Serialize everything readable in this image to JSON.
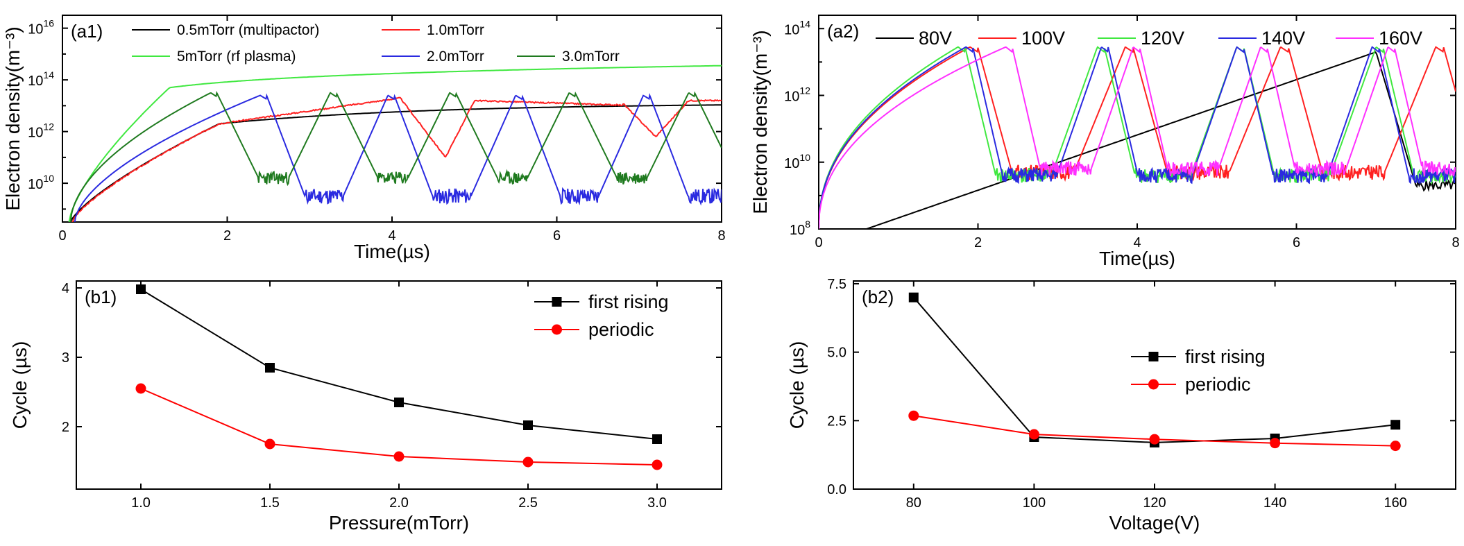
{
  "chart_data": [
    {
      "panel": "a1",
      "type": "line",
      "label": "(a1)",
      "xlabel": "Time(µs)",
      "ylabel": "Electron density(m⁻³)",
      "xlim": [
        0,
        8
      ],
      "ylim_log10": [
        8.5,
        16.5
      ],
      "yscale": "log",
      "xticks": [
        0,
        2,
        4,
        6,
        8
      ],
      "xtick_labels": [
        "0",
        "2",
        "4",
        "6",
        "8"
      ],
      "yticks_exp": [
        10,
        12,
        14,
        16
      ],
      "ytick_labels": [
        "10",
        "10",
        "10",
        "10"
      ],
      "ytick_exps": [
        "10",
        "12",
        "14",
        "16"
      ],
      "series": [
        {
          "name": "0.5mTorr (multipactor)",
          "color": "#000000"
        },
        {
          "name": "1.0mTorr",
          "color": "#ff2020"
        },
        {
          "name": "5mTorr (rf plasma)",
          "color": "#40e840"
        },
        {
          "name": "2.0mTorr",
          "color": "#2a2ae0"
        },
        {
          "name": "3.0mTorr",
          "color": "#1f7a1f"
        }
      ]
    },
    {
      "panel": "a2",
      "type": "line",
      "label": "(a2)",
      "xlabel": "Time(µs)",
      "ylabel": "Electron density(m⁻³)",
      "xlim": [
        0,
        8
      ],
      "ylim_log10": [
        8,
        14.4
      ],
      "yscale": "log",
      "xticks": [
        0,
        2,
        4,
        6,
        8
      ],
      "xtick_labels": [
        "0",
        "2",
        "4",
        "6",
        "8"
      ],
      "yticks_exp": [
        8,
        10,
        12,
        14
      ],
      "ytick_labels": [
        "10",
        "10",
        "10",
        "10"
      ],
      "ytick_exps": [
        "8",
        "10",
        "12",
        "14"
      ],
      "series": [
        {
          "name": "80V",
          "color": "#000000"
        },
        {
          "name": "100V",
          "color": "#ff2020"
        },
        {
          "name": "120V",
          "color": "#40e840"
        },
        {
          "name": "140V",
          "color": "#2a2ae0"
        },
        {
          "name": "160V",
          "color": "#ff30ff"
        }
      ]
    },
    {
      "panel": "b1",
      "type": "line",
      "label": "(b1)",
      "xlabel": "Pressure(mTorr)",
      "ylabel": "Cycle (µs)",
      "xlim": [
        0.75,
        3.25
      ],
      "ylim": [
        1.1,
        4.1
      ],
      "xticks": [
        1.0,
        1.5,
        2.0,
        2.5,
        3.0
      ],
      "xtick_labels": [
        "1.0",
        "1.5",
        "2.0",
        "2.5",
        "3.0"
      ],
      "yticks": [
        2,
        3,
        4
      ],
      "ytick_labels": [
        "2",
        "3",
        "4"
      ],
      "x": [
        1.0,
        1.5,
        2.0,
        2.5,
        3.0
      ],
      "series": [
        {
          "name": "first rising",
          "color": "#000000",
          "marker": "square",
          "values": [
            3.98,
            2.85,
            2.35,
            2.02,
            1.82
          ]
        },
        {
          "name": "periodic",
          "color": "#ff0000",
          "marker": "circle",
          "values": [
            2.55,
            1.75,
            1.57,
            1.49,
            1.45
          ]
        }
      ]
    },
    {
      "panel": "b2",
      "type": "line",
      "label": "(b2)",
      "xlabel": "Voltage(V)",
      "ylabel": "Cycle (µs)",
      "xlim": [
        70,
        170
      ],
      "ylim": [
        0,
        7.6
      ],
      "xticks": [
        80,
        100,
        120,
        140,
        160
      ],
      "xtick_labels": [
        "80",
        "100",
        "120",
        "140",
        "160"
      ],
      "yticks": [
        0,
        2.5,
        5.0,
        7.5
      ],
      "ytick_labels": [
        "0.0",
        "2.5",
        "5.0",
        "7.5"
      ],
      "x": [
        80,
        100,
        120,
        140,
        160
      ],
      "series": [
        {
          "name": "first rising",
          "color": "#000000",
          "marker": "square",
          "values": [
            7.0,
            1.9,
            1.7,
            1.85,
            2.35
          ]
        },
        {
          "name": "periodic",
          "color": "#ff0000",
          "marker": "circle",
          "values": [
            2.68,
            2.0,
            1.82,
            1.68,
            1.58
          ]
        }
      ]
    }
  ]
}
